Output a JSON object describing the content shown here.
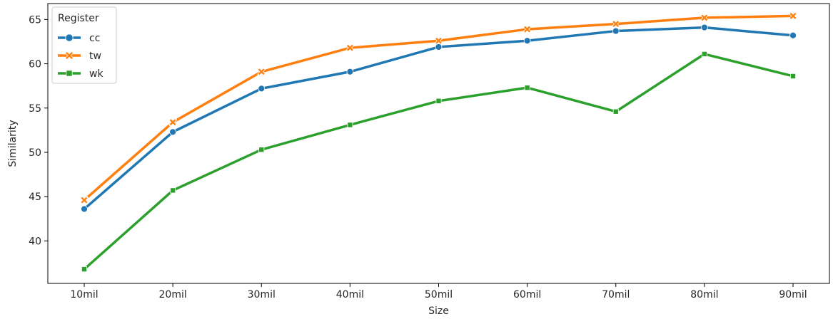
{
  "chart_data": {
    "type": "line",
    "xlabel": "Size",
    "ylabel": "Similarity",
    "categories": [
      "10mil",
      "20mil",
      "30mil",
      "40mil",
      "50mil",
      "60mil",
      "70mil",
      "80mil",
      "90mil"
    ],
    "ylim": [
      35.2,
      66.8
    ],
    "yticks": [
      40,
      45,
      50,
      55,
      60,
      65
    ],
    "grid": false,
    "legend": {
      "title": "Register",
      "placement": "top-left"
    },
    "series": [
      {
        "name": "cc",
        "color": "#1f77b4",
        "marker": "circle",
        "values": [
          43.6,
          52.3,
          57.2,
          59.1,
          61.9,
          62.6,
          63.7,
          64.1,
          63.2
        ]
      },
      {
        "name": "tw",
        "color": "#ff7f0e",
        "marker": "x",
        "values": [
          44.6,
          53.4,
          59.1,
          61.8,
          62.6,
          63.9,
          64.5,
          65.2,
          65.4
        ]
      },
      {
        "name": "wk",
        "color": "#2ca02c",
        "marker": "square",
        "values": [
          36.8,
          45.7,
          50.3,
          53.1,
          55.8,
          57.3,
          54.6,
          61.1,
          58.6
        ]
      }
    ]
  }
}
